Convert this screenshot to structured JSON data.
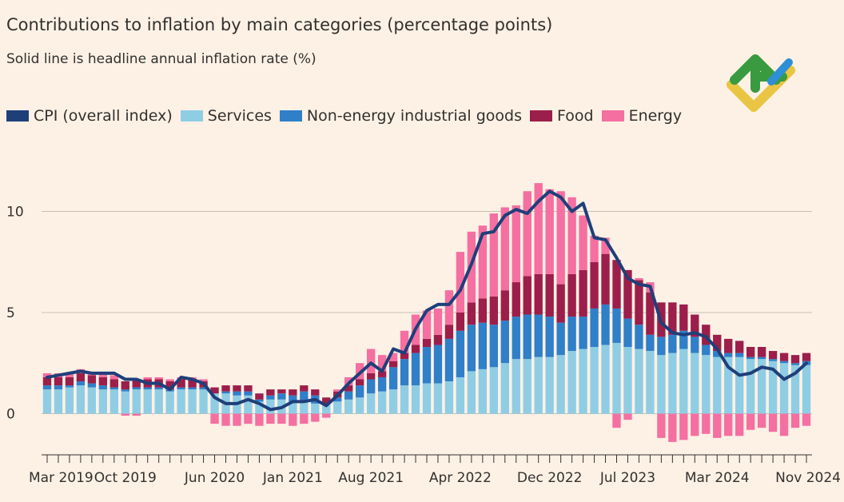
{
  "header": {
    "title": "Contributions to inflation by main categories (percentage points)",
    "subtitle": "Solid line is headline annual inflation rate (%)"
  },
  "colors": {
    "cpi": "#1f3f7a",
    "services": "#8fcde4",
    "nonenergy": "#2f7fc9",
    "food": "#9c1e4a",
    "energy": "#f56fa1",
    "grid": "#c9bfb5",
    "axis": "#33302e"
  },
  "legend": [
    {
      "label": "CPI (overall index)",
      "color": "#1f3f7a"
    },
    {
      "label": "Services",
      "color": "#8fcde4"
    },
    {
      "label": "Non-energy industrial goods",
      "color": "#2f7fc9"
    },
    {
      "label": "Food",
      "color": "#9c1e4a"
    },
    {
      "label": "Energy",
      "color": "#f56fa1"
    }
  ],
  "chart_data": {
    "type": "bar",
    "title": "Contributions to inflation by main categories (percentage points)",
    "subtitle": "Solid line is headline annual inflation rate (%)",
    "ylim": [
      -2.2,
      11.5
    ],
    "yticks": [
      0,
      5,
      10
    ],
    "xtick_labels": [
      {
        "index": 0,
        "label": "Mar 2019"
      },
      {
        "index": 7,
        "label": "Oct 2019"
      },
      {
        "index": 15,
        "label": "Jun 2020"
      },
      {
        "index": 22,
        "label": "Jan 2021"
      },
      {
        "index": 29,
        "label": "Aug 2021"
      },
      {
        "index": 37,
        "label": "Apr 2022"
      },
      {
        "index": 45,
        "label": "Dec 2022"
      },
      {
        "index": 52,
        "label": "Jul 2023"
      },
      {
        "index": 60,
        "label": "Mar 2024"
      },
      {
        "index": 68,
        "label": "Nov 2024"
      }
    ],
    "series": [
      {
        "name": "Services",
        "values": [
          1.2,
          1.2,
          1.3,
          1.4,
          1.3,
          1.2,
          1.2,
          1.1,
          1.2,
          1.2,
          1.2,
          1.1,
          1.2,
          1.2,
          1.2,
          1.0,
          1.0,
          0.9,
          0.9,
          0.6,
          0.7,
          0.7,
          0.6,
          0.6,
          0.5,
          0.5,
          0.6,
          0.7,
          0.8,
          1.0,
          1.1,
          1.2,
          1.4,
          1.4,
          1.5,
          1.5,
          1.6,
          1.8,
          2.1,
          2.2,
          2.3,
          2.5,
          2.7,
          2.7,
          2.8,
          2.8,
          2.9,
          3.1,
          3.2,
          3.3,
          3.4,
          3.5,
          3.3,
          3.2,
          3.1,
          2.9,
          3.0,
          3.2,
          3.0,
          2.9,
          2.8,
          2.8,
          2.8,
          2.7,
          2.7,
          2.6,
          2.5,
          2.4,
          2.4
        ]
      },
      {
        "name": "Non-energy industrial goods",
        "values": [
          0.2,
          0.2,
          0.1,
          0.2,
          0.2,
          0.2,
          0.1,
          0.1,
          0.1,
          0.1,
          0.1,
          0.1,
          0.1,
          0.1,
          0.1,
          0.0,
          0.1,
          0.2,
          0.2,
          0.1,
          0.2,
          0.3,
          0.3,
          0.5,
          0.4,
          0.0,
          0.2,
          0.4,
          0.6,
          0.7,
          0.7,
          1.1,
          1.3,
          1.6,
          1.8,
          1.9,
          2.1,
          2.3,
          2.3,
          2.3,
          2.1,
          2.1,
          2.1,
          2.2,
          2.1,
          2.0,
          1.6,
          1.7,
          1.6,
          1.9,
          2.0,
          1.7,
          1.4,
          1.2,
          0.8,
          0.9,
          0.9,
          0.9,
          0.8,
          0.5,
          0.3,
          0.2,
          0.2,
          0.1,
          0.1,
          0.1,
          0.1,
          0.1,
          0.2
        ]
      },
      {
        "name": "Food",
        "values": [
          0.4,
          0.4,
          0.4,
          0.4,
          0.4,
          0.4,
          0.4,
          0.4,
          0.4,
          0.4,
          0.4,
          0.4,
          0.4,
          0.4,
          0.3,
          0.3,
          0.3,
          0.3,
          0.3,
          0.3,
          0.3,
          0.2,
          0.3,
          0.3,
          0.3,
          0.3,
          0.3,
          0.3,
          0.3,
          0.3,
          0.3,
          0.3,
          0.3,
          0.4,
          0.4,
          0.5,
          0.7,
          0.9,
          1.1,
          1.2,
          1.4,
          1.5,
          1.7,
          1.9,
          2.0,
          2.1,
          1.9,
          2.1,
          2.3,
          2.3,
          2.5,
          2.4,
          2.4,
          2.2,
          2.1,
          1.7,
          1.6,
          1.3,
          1.1,
          1.0,
          0.8,
          0.7,
          0.6,
          0.5,
          0.5,
          0.4,
          0.4,
          0.4,
          0.4
        ]
      },
      {
        "name": "Energy",
        "values": [
          0.2,
          0.2,
          0.2,
          0.2,
          0.1,
          0.2,
          0.2,
          -0.1,
          -0.1,
          0.1,
          0.1,
          0.1,
          0.1,
          0.1,
          0.1,
          -0.5,
          -0.6,
          -0.6,
          -0.5,
          -0.6,
          -0.5,
          -0.5,
          -0.6,
          -0.5,
          -0.4,
          -0.2,
          0.1,
          0.4,
          0.8,
          1.2,
          0.8,
          0.4,
          1.1,
          1.5,
          1.4,
          1.3,
          1.7,
          3.0,
          3.5,
          3.6,
          4.1,
          4.1,
          3.8,
          4.2,
          4.5,
          4.2,
          4.6,
          3.8,
          2.7,
          1.3,
          0.8,
          -0.7,
          -0.3,
          0.1,
          0.5,
          -1.2,
          -1.4,
          -1.3,
          -1.1,
          -1.0,
          -1.2,
          -1.1,
          -1.1,
          -0.8,
          -0.7,
          -0.9,
          -1.1,
          -0.7,
          -0.6
        ]
      },
      {
        "name": "CPI (overall index)",
        "type": "line",
        "values": [
          1.8,
          1.9,
          2.0,
          2.1,
          2.0,
          2.0,
          2.0,
          1.7,
          1.7,
          1.5,
          1.5,
          1.2,
          1.8,
          1.7,
          1.5,
          0.8,
          0.5,
          0.5,
          0.7,
          0.5,
          0.2,
          0.3,
          0.6,
          0.6,
          0.7,
          0.4,
          0.9,
          1.5,
          2.0,
          2.5,
          2.1,
          3.2,
          3.0,
          4.2,
          5.1,
          5.4,
          5.4,
          6.1,
          7.4,
          8.9,
          9.0,
          9.8,
          10.1,
          9.9,
          10.5,
          11.0,
          10.7,
          10.0,
          10.4,
          8.7,
          8.6,
          7.7,
          6.7,
          6.4,
          6.3,
          4.5,
          4.0,
          3.9,
          4.0,
          3.8,
          3.2,
          2.3,
          1.9,
          2.0,
          2.3,
          2.2,
          1.7,
          2.0,
          2.5
        ]
      }
    ]
  }
}
